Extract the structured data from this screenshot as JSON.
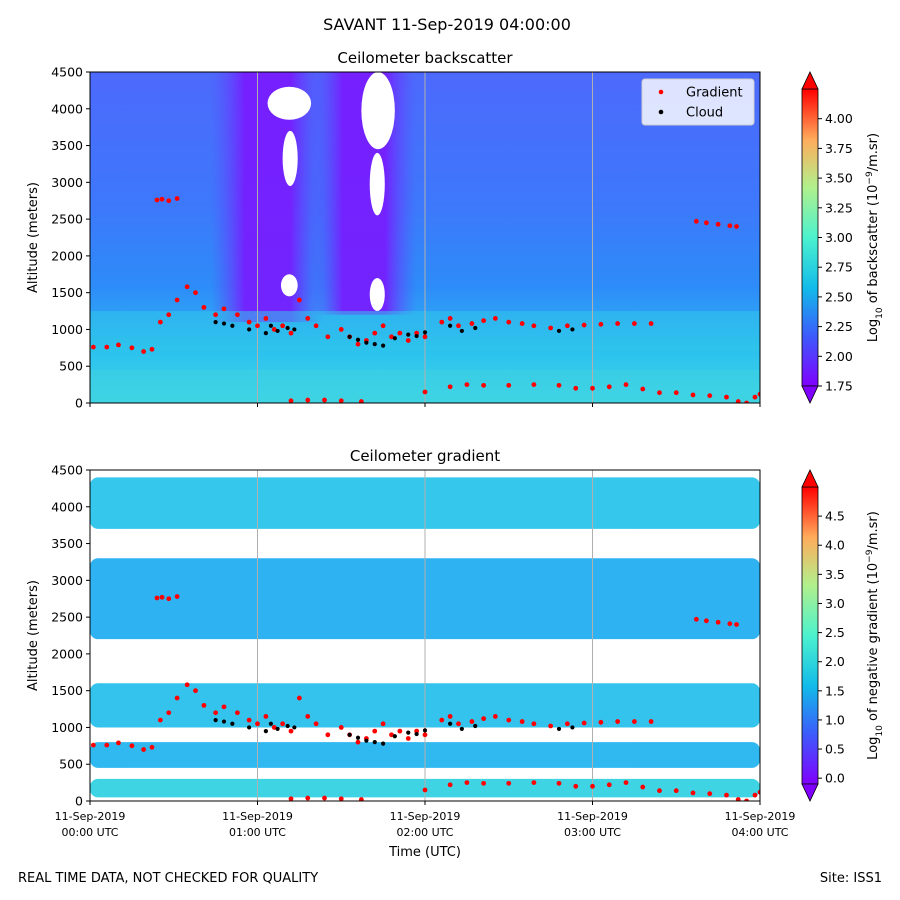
{
  "header": {
    "title": "SAVANT 11-Sep-2019 04:00:00"
  },
  "footer": {
    "left_note": "REAL TIME DATA, NOT CHECKED FOR QUALITY",
    "site": "Site: ISS1"
  },
  "chart_data": [
    {
      "type": "heatmap",
      "title": "Ceilometer backscatter",
      "ylabel": "Altitude (meters)",
      "xlabel": "",
      "ylim": [
        0,
        4500
      ],
      "xlim_hours": [
        0,
        4
      ],
      "yticks": [
        0,
        500,
        1000,
        1500,
        2000,
        2500,
        3000,
        3500,
        4000,
        4500
      ],
      "grid": "vertical-only",
      "colorbar": {
        "label_prefix": "Log",
        "label_sub": "10",
        "label_mid": " of backscatter (10",
        "label_sup": "−9",
        "label_suffix": "/m.sr)",
        "range": [
          1.75,
          4.25
        ],
        "ticks": [
          "1.75",
          "2.00",
          "2.25",
          "2.50",
          "2.75",
          "3.00",
          "3.25",
          "3.50",
          "3.75",
          "4.00"
        ],
        "colormap": "rainbow",
        "extend": "both"
      },
      "legend": {
        "placement": "top-right",
        "entries": [
          {
            "name": "Gradient",
            "color": "#ff0000"
          },
          {
            "name": "Cloud",
            "color": "#000000"
          }
        ]
      },
      "series": [
        {
          "name": "Gradient",
          "color": "#ff0000",
          "points": [
            [
              0.02,
              760
            ],
            [
              0.1,
              760
            ],
            [
              0.17,
              790
            ],
            [
              0.25,
              750
            ],
            [
              0.32,
              700
            ],
            [
              0.37,
              730
            ],
            [
              0.42,
              1100
            ],
            [
              0.47,
              1200
            ],
            [
              0.52,
              1400
            ],
            [
              0.58,
              1580
            ],
            [
              0.63,
              1500
            ],
            [
              0.68,
              1300
            ],
            [
              0.75,
              1200
            ],
            [
              0.8,
              1280
            ],
            [
              0.88,
              1200
            ],
            [
              0.95,
              1100
            ],
            [
              1.0,
              1050
            ],
            [
              1.05,
              1150
            ],
            [
              1.1,
              1000
            ],
            [
              1.15,
              1050
            ],
            [
              1.2,
              950
            ],
            [
              1.25,
              1400
            ],
            [
              1.3,
              1150
            ],
            [
              1.35,
              1050
            ],
            [
              1.42,
              900
            ],
            [
              1.5,
              1000
            ],
            [
              1.55,
              900
            ],
            [
              1.6,
              800
            ],
            [
              1.65,
              850
            ],
            [
              1.7,
              950
            ],
            [
              1.75,
              1050
            ],
            [
              1.8,
              900
            ],
            [
              1.85,
              950
            ],
            [
              1.9,
              850
            ],
            [
              1.95,
              950
            ],
            [
              2.0,
              900
            ],
            [
              2.1,
              1100
            ],
            [
              2.15,
              1150
            ],
            [
              2.2,
              1050
            ],
            [
              2.28,
              1080
            ],
            [
              2.35,
              1120
            ],
            [
              2.42,
              1150
            ],
            [
              2.5,
              1100
            ],
            [
              2.58,
              1080
            ],
            [
              2.65,
              1050
            ],
            [
              2.75,
              1020
            ],
            [
              2.85,
              1050
            ],
            [
              2.95,
              1060
            ],
            [
              3.05,
              1070
            ],
            [
              3.15,
              1080
            ],
            [
              3.25,
              1080
            ],
            [
              3.35,
              1080
            ],
            [
              0.4,
              2760
            ],
            [
              0.43,
              2770
            ],
            [
              0.47,
              2750
            ],
            [
              0.52,
              2780
            ],
            [
              3.62,
              2470
            ],
            [
              3.68,
              2450
            ],
            [
              3.75,
              2430
            ],
            [
              3.82,
              2410
            ],
            [
              3.86,
              2400
            ],
            [
              1.2,
              30
            ],
            [
              1.3,
              40
            ],
            [
              1.4,
              40
            ],
            [
              1.5,
              30
            ],
            [
              1.62,
              20
            ],
            [
              2.0,
              150
            ],
            [
              2.15,
              220
            ],
            [
              2.25,
              250
            ],
            [
              2.35,
              240
            ],
            [
              2.5,
              240
            ],
            [
              2.65,
              250
            ],
            [
              2.8,
              240
            ],
            [
              2.9,
              200
            ],
            [
              3.0,
              200
            ],
            [
              3.1,
              220
            ],
            [
              3.2,
              250
            ],
            [
              3.3,
              190
            ],
            [
              3.4,
              140
            ],
            [
              3.5,
              140
            ],
            [
              3.6,
              110
            ],
            [
              3.7,
              100
            ],
            [
              3.8,
              80
            ],
            [
              3.87,
              20
            ],
            [
              3.92,
              0
            ],
            [
              3.97,
              80
            ],
            [
              4.0,
              120
            ]
          ]
        },
        {
          "name": "Cloud",
          "color": "#000000",
          "points": [
            [
              0.75,
              1100
            ],
            [
              0.8,
              1080
            ],
            [
              0.85,
              1050
            ],
            [
              0.95,
              1000
            ],
            [
              1.05,
              950
            ],
            [
              1.08,
              1050
            ],
            [
              1.12,
              980
            ],
            [
              1.18,
              1020
            ],
            [
              1.22,
              1000
            ],
            [
              1.55,
              900
            ],
            [
              1.6,
              860
            ],
            [
              1.65,
              820
            ],
            [
              1.7,
              800
            ],
            [
              1.75,
              780
            ],
            [
              1.82,
              880
            ],
            [
              1.9,
              930
            ],
            [
              1.95,
              910
            ],
            [
              2.0,
              960
            ],
            [
              2.15,
              1050
            ],
            [
              2.22,
              980
            ],
            [
              2.3,
              1020
            ],
            [
              2.8,
              980
            ],
            [
              2.88,
              1000
            ]
          ]
        }
      ]
    },
    {
      "type": "heatmap",
      "title": "Ceilometer gradient",
      "ylabel": "Altitude (meters)",
      "xlabel": "Time (UTC)",
      "ylim": [
        0,
        4500
      ],
      "xlim_hours": [
        0,
        4
      ],
      "yticks": [
        0,
        500,
        1000,
        1500,
        2000,
        2500,
        3000,
        3500,
        4000,
        4500
      ],
      "xticks": [
        {
          "hours": 0,
          "line1": "11-Sep-2019",
          "line2": "00:00 UTC"
        },
        {
          "hours": 1,
          "line1": "11-Sep-2019",
          "line2": "01:00 UTC"
        },
        {
          "hours": 2,
          "line1": "11-Sep-2019",
          "line2": "02:00 UTC"
        },
        {
          "hours": 3,
          "line1": "11-Sep-2019",
          "line2": "03:00 UTC"
        },
        {
          "hours": 4,
          "line1": "11-Sep-2019",
          "line2": "04:00 UTC"
        }
      ],
      "grid": "vertical-only",
      "colorbar": {
        "label_prefix": "Log",
        "label_sub": "10",
        "label_mid": " of negative gradient (10",
        "label_sup": "−9",
        "label_suffix": "/m.sr)",
        "range": [
          -0.1,
          5.0
        ],
        "ticks": [
          "0.0",
          "0.5",
          "1.0",
          "1.5",
          "2.0",
          "2.5",
          "3.0",
          "3.5",
          "4.0",
          "4.5"
        ],
        "colormap": "rainbow",
        "extend": "both"
      },
      "bands": [
        {
          "y0": 3700,
          "y1": 4400
        },
        {
          "y0": 2200,
          "y1": 3300
        },
        {
          "y0": 1000,
          "y1": 1600
        },
        {
          "y0": 450,
          "y1": 800
        },
        {
          "y0": 50,
          "y1": 300
        }
      ],
      "series": [
        {
          "name": "Gradient",
          "color": "#ff0000",
          "points": [
            [
              0.02,
              760
            ],
            [
              0.1,
              760
            ],
            [
              0.17,
              790
            ],
            [
              0.25,
              750
            ],
            [
              0.32,
              700
            ],
            [
              0.37,
              730
            ],
            [
              0.42,
              1100
            ],
            [
              0.47,
              1200
            ],
            [
              0.52,
              1400
            ],
            [
              0.58,
              1580
            ],
            [
              0.63,
              1500
            ],
            [
              0.68,
              1300
            ],
            [
              0.75,
              1200
            ],
            [
              0.8,
              1280
            ],
            [
              0.88,
              1200
            ],
            [
              0.95,
              1100
            ],
            [
              1.0,
              1050
            ],
            [
              1.05,
              1150
            ],
            [
              1.1,
              1000
            ],
            [
              1.15,
              1050
            ],
            [
              1.2,
              950
            ],
            [
              1.25,
              1400
            ],
            [
              1.3,
              1150
            ],
            [
              1.35,
              1050
            ],
            [
              1.42,
              900
            ],
            [
              1.5,
              1000
            ],
            [
              1.55,
              900
            ],
            [
              1.6,
              800
            ],
            [
              1.65,
              850
            ],
            [
              1.7,
              950
            ],
            [
              1.75,
              1050
            ],
            [
              1.8,
              900
            ],
            [
              1.85,
              950
            ],
            [
              1.9,
              850
            ],
            [
              1.95,
              950
            ],
            [
              2.0,
              900
            ],
            [
              2.1,
              1100
            ],
            [
              2.15,
              1150
            ],
            [
              2.2,
              1050
            ],
            [
              2.28,
              1080
            ],
            [
              2.35,
              1120
            ],
            [
              2.42,
              1150
            ],
            [
              2.5,
              1100
            ],
            [
              2.58,
              1080
            ],
            [
              2.65,
              1050
            ],
            [
              2.75,
              1020
            ],
            [
              2.85,
              1050
            ],
            [
              2.95,
              1060
            ],
            [
              3.05,
              1070
            ],
            [
              3.15,
              1080
            ],
            [
              3.25,
              1080
            ],
            [
              3.35,
              1080
            ],
            [
              0.4,
              2760
            ],
            [
              0.43,
              2770
            ],
            [
              0.47,
              2750
            ],
            [
              0.52,
              2780
            ],
            [
              3.62,
              2470
            ],
            [
              3.68,
              2450
            ],
            [
              3.75,
              2430
            ],
            [
              3.82,
              2410
            ],
            [
              3.86,
              2400
            ],
            [
              1.2,
              30
            ],
            [
              1.3,
              40
            ],
            [
              1.4,
              40
            ],
            [
              1.5,
              30
            ],
            [
              1.62,
              20
            ],
            [
              2.0,
              150
            ],
            [
              2.15,
              220
            ],
            [
              2.25,
              250
            ],
            [
              2.35,
              240
            ],
            [
              2.5,
              240
            ],
            [
              2.65,
              250
            ],
            [
              2.8,
              240
            ],
            [
              2.9,
              200
            ],
            [
              3.0,
              200
            ],
            [
              3.1,
              220
            ],
            [
              3.2,
              250
            ],
            [
              3.3,
              190
            ],
            [
              3.4,
              140
            ],
            [
              3.5,
              140
            ],
            [
              3.6,
              110
            ],
            [
              3.7,
              100
            ],
            [
              3.8,
              80
            ],
            [
              3.87,
              20
            ],
            [
              3.92,
              0
            ],
            [
              3.97,
              80
            ],
            [
              4.0,
              120
            ]
          ]
        },
        {
          "name": "Cloud",
          "color": "#000000",
          "points": [
            [
              0.75,
              1100
            ],
            [
              0.8,
              1080
            ],
            [
              0.85,
              1050
            ],
            [
              0.95,
              1000
            ],
            [
              1.05,
              950
            ],
            [
              1.08,
              1050
            ],
            [
              1.12,
              980
            ],
            [
              1.18,
              1020
            ],
            [
              1.22,
              1000
            ],
            [
              1.55,
              900
            ],
            [
              1.6,
              860
            ],
            [
              1.65,
              820
            ],
            [
              1.7,
              800
            ],
            [
              1.75,
              780
            ],
            [
              1.82,
              880
            ],
            [
              1.9,
              930
            ],
            [
              1.95,
              910
            ],
            [
              2.0,
              960
            ],
            [
              2.15,
              1050
            ],
            [
              2.22,
              980
            ],
            [
              2.3,
              1020
            ],
            [
              2.8,
              980
            ],
            [
              2.88,
              1000
            ]
          ]
        }
      ]
    }
  ]
}
